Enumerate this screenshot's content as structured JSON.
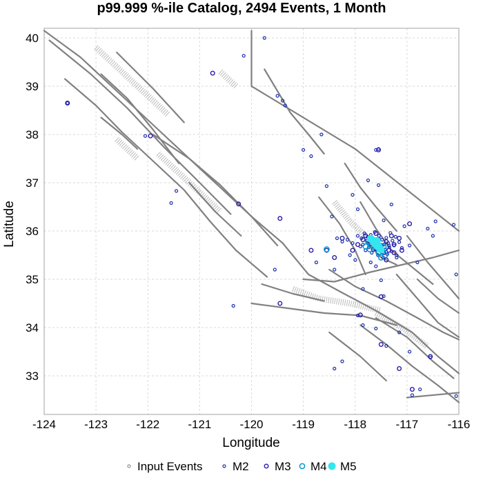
{
  "chart_data": {
    "type": "scatter",
    "title": "p99.999 %-ile Catalog, 2494 Events, 1 Month",
    "xlabel": "Longitude",
    "ylabel": "Latitude",
    "xlim": [
      -124,
      -116
    ],
    "ylim": [
      32.2,
      40.2
    ],
    "x_ticks": [
      -124,
      -123,
      -122,
      -121,
      -120,
      -119,
      -118,
      -117,
      -116
    ],
    "y_ticks": [
      33,
      34,
      35,
      36,
      37,
      38,
      39,
      40
    ],
    "x_tick_labels": [
      "-124",
      "-123",
      "-122",
      "-121",
      "-120",
      "-119",
      "-118",
      "-117",
      "-116"
    ],
    "y_tick_labels": [
      "33",
      "34",
      "35",
      "36",
      "37",
      "38",
      "39",
      "40"
    ],
    "grid": true,
    "legend_position": "bottom",
    "legend": [
      {
        "label": "Input Events",
        "style": "input"
      },
      {
        "label": "M2",
        "style": "m2"
      },
      {
        "label": "M3",
        "style": "m3"
      },
      {
        "label": "M4",
        "style": "m4"
      },
      {
        "label": "M5",
        "style": "m5"
      }
    ],
    "colors": {
      "faults": "#808080",
      "input": "#7a7a7a",
      "m2": "#1a2fa8",
      "m3": "#2a1ca8",
      "m4": "#0096d6",
      "m5": "#33e6f0",
      "grid": "#d9d9d9"
    },
    "series": [
      {
        "name": "M2",
        "points": [
          [
            -123.55,
            38.65
          ],
          [
            -122.05,
            37.97
          ],
          [
            -121.45,
            36.83
          ],
          [
            -121.55,
            36.58
          ],
          [
            -120.15,
            39.63
          ],
          [
            -119.75,
            40.0
          ],
          [
            -119.5,
            38.8
          ],
          [
            -119.4,
            38.7
          ],
          [
            -119.35,
            38.6
          ],
          [
            -119.0,
            37.68
          ],
          [
            -118.85,
            37.55
          ],
          [
            -118.65,
            38.0
          ],
          [
            -118.55,
            36.93
          ],
          [
            -118.45,
            36.3
          ],
          [
            -118.35,
            35.85
          ],
          [
            -118.25,
            35.78
          ],
          [
            -118.15,
            35.82
          ],
          [
            -118.05,
            35.75
          ],
          [
            -117.95,
            35.9
          ],
          [
            -117.9,
            35.68
          ],
          [
            -117.88,
            35.85
          ],
          [
            -117.85,
            35.72
          ],
          [
            -117.82,
            35.95
          ],
          [
            -117.8,
            35.6
          ],
          [
            -117.78,
            35.8
          ],
          [
            -117.76,
            35.88
          ],
          [
            -117.74,
            35.66
          ],
          [
            -117.72,
            35.76
          ],
          [
            -117.7,
            35.92
          ],
          [
            -117.68,
            35.55
          ],
          [
            -117.66,
            35.85
          ],
          [
            -117.64,
            35.7
          ],
          [
            -117.62,
            35.98
          ],
          [
            -117.6,
            35.62
          ],
          [
            -117.58,
            35.78
          ],
          [
            -117.56,
            35.5
          ],
          [
            -117.54,
            35.9
          ],
          [
            -117.52,
            35.68
          ],
          [
            -117.5,
            35.58
          ],
          [
            -117.48,
            35.82
          ],
          [
            -117.46,
            35.45
          ],
          [
            -117.44,
            35.72
          ],
          [
            -117.42,
            35.62
          ],
          [
            -117.4,
            35.86
          ],
          [
            -117.38,
            35.52
          ],
          [
            -117.36,
            35.75
          ],
          [
            -117.34,
            35.66
          ],
          [
            -117.32,
            35.96
          ],
          [
            -117.3,
            35.58
          ],
          [
            -117.28,
            35.8
          ],
          [
            -117.25,
            35.7
          ],
          [
            -117.22,
            35.88
          ],
          [
            -117.2,
            35.5
          ],
          [
            -117.15,
            35.77
          ],
          [
            -117.1,
            35.65
          ],
          [
            -117.05,
            36.1
          ],
          [
            -116.95,
            35.7
          ],
          [
            -116.8,
            35.35
          ],
          [
            -116.6,
            36.05
          ],
          [
            -116.5,
            35.9
          ],
          [
            -116.45,
            36.2
          ],
          [
            -116.1,
            36.13
          ],
          [
            -117.55,
            36.95
          ],
          [
            -117.45,
            36.22
          ],
          [
            -117.3,
            36.55
          ],
          [
            -117.95,
            36.45
          ],
          [
            -118.05,
            36.75
          ],
          [
            -117.75,
            37.05
          ],
          [
            -117.6,
            37.68
          ],
          [
            -117.55,
            37.7
          ],
          [
            -117.6,
            35.27
          ],
          [
            -117.5,
            34.98
          ],
          [
            -117.45,
            34.65
          ],
          [
            -117.95,
            34.25
          ],
          [
            -117.85,
            34.05
          ],
          [
            -117.6,
            33.98
          ],
          [
            -117.4,
            33.62
          ],
          [
            -117.15,
            33.9
          ],
          [
            -116.95,
            33.5
          ],
          [
            -116.55,
            33.38
          ],
          [
            -116.75,
            32.72
          ],
          [
            -116.9,
            32.6
          ],
          [
            -118.25,
            33.3
          ],
          [
            -118.4,
            33.15
          ],
          [
            -117.85,
            34.8
          ],
          [
            -118.4,
            35.2
          ],
          [
            -117.2,
            35.45
          ],
          [
            -120.35,
            34.45
          ],
          [
            -119.55,
            35.2
          ],
          [
            -118.0,
            35.4
          ],
          [
            -118.75,
            35.35
          ],
          [
            -116.05,
            32.58
          ],
          [
            -116.05,
            35.1
          ],
          [
            -117.35,
            35.7
          ],
          [
            -117.7,
            35.35
          ],
          [
            -118.1,
            35.5
          ]
        ]
      },
      {
        "name": "M3",
        "points": [
          [
            -123.55,
            38.65
          ],
          [
            -121.95,
            37.97
          ],
          [
            -120.75,
            39.27
          ],
          [
            -120.25,
            36.56
          ],
          [
            -119.45,
            36.26
          ],
          [
            -118.85,
            35.6
          ],
          [
            -118.55,
            35.6
          ],
          [
            -118.25,
            35.85
          ],
          [
            -118.05,
            35.6
          ],
          [
            -117.85,
            35.82
          ],
          [
            -117.7,
            35.74
          ],
          [
            -117.65,
            35.62
          ],
          [
            -117.55,
            35.83
          ],
          [
            -117.5,
            35.7
          ],
          [
            -117.45,
            35.55
          ],
          [
            -117.4,
            35.78
          ],
          [
            -117.35,
            35.6
          ],
          [
            -117.3,
            35.9
          ],
          [
            -117.25,
            35.72
          ],
          [
            -117.15,
            35.85
          ],
          [
            -117.1,
            35.6
          ],
          [
            -116.95,
            36.15
          ],
          [
            -117.55,
            37.68
          ],
          [
            -117.5,
            34.64
          ],
          [
            -119.45,
            34.5
          ],
          [
            -117.9,
            34.26
          ],
          [
            -117.5,
            33.65
          ],
          [
            -117.15,
            33.15
          ],
          [
            -116.55,
            33.4
          ],
          [
            -116.9,
            32.72
          ],
          [
            -117.25,
            35.55
          ],
          [
            -117.8,
            35.9
          ],
          [
            -117.95,
            35.72
          ],
          [
            -117.6,
            35.95
          ],
          [
            -118.4,
            35.45
          ],
          [
            -117.4,
            35.4
          ]
        ]
      },
      {
        "name": "M4",
        "points": [
          [
            -117.75,
            35.78
          ],
          [
            -117.7,
            35.7
          ],
          [
            -117.62,
            35.75
          ],
          [
            -117.58,
            35.66
          ],
          [
            -117.52,
            35.62
          ],
          [
            -117.55,
            35.55
          ],
          [
            -117.48,
            35.58
          ],
          [
            -117.66,
            35.82
          ],
          [
            -117.72,
            35.62
          ],
          [
            -117.42,
            35.5
          ],
          [
            -118.55,
            35.62
          ],
          [
            -117.5,
            35.45
          ],
          [
            -117.45,
            35.67
          ],
          [
            -117.8,
            35.68
          ]
        ]
      },
      {
        "name": "M5",
        "points": [
          [
            -117.7,
            35.84
          ],
          [
            -117.66,
            35.8
          ],
          [
            -117.63,
            35.76
          ],
          [
            -117.6,
            35.72
          ],
          [
            -117.57,
            35.69
          ],
          [
            -117.54,
            35.66
          ],
          [
            -117.51,
            35.62
          ],
          [
            -117.6,
            35.77
          ],
          [
            -117.56,
            35.7
          ],
          [
            -117.58,
            35.8
          ]
        ]
      }
    ]
  }
}
